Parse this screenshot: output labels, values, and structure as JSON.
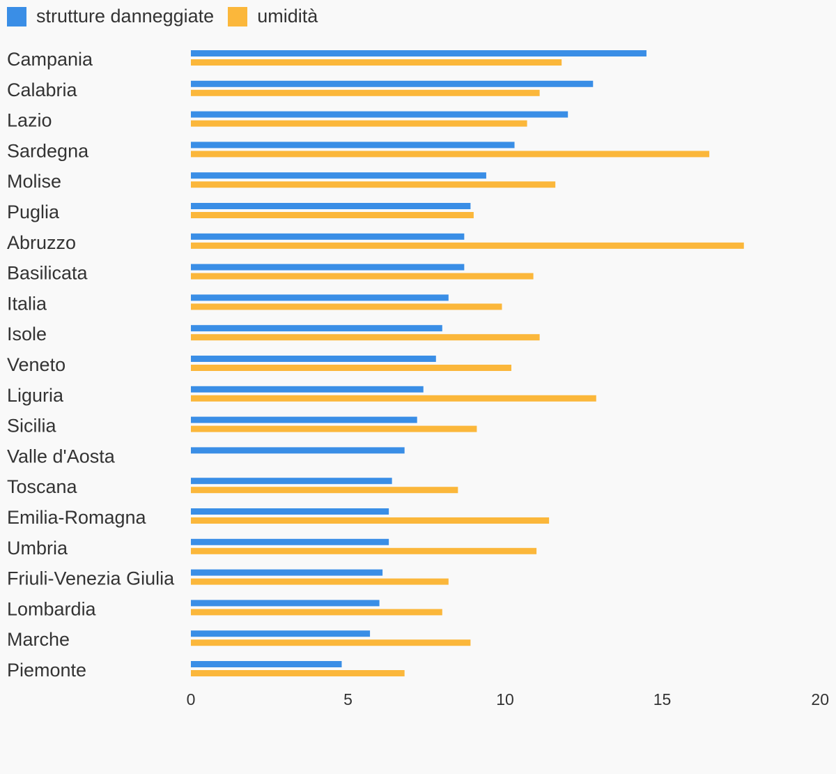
{
  "chart_data": {
    "type": "bar",
    "orientation": "horizontal",
    "categories": [
      "Campania",
      "Calabria",
      "Lazio",
      "Sardegna",
      "Molise",
      "Puglia",
      "Abruzzo",
      "Basilicata",
      "Italia",
      "Isole",
      "Veneto",
      "Liguria",
      "Sicilia",
      "Valle d'Aosta",
      "Toscana",
      "Emilia-Romagna",
      "Umbria",
      "Friuli-Venezia Giulia",
      "Lombardia",
      "Marche",
      "Piemonte"
    ],
    "series": [
      {
        "name": "strutture danneggiate",
        "color": "#3a8ee6",
        "values": [
          14.5,
          12.8,
          12.0,
          10.3,
          9.4,
          8.9,
          8.7,
          8.7,
          8.2,
          8.0,
          7.8,
          7.4,
          7.2,
          6.8,
          6.4,
          6.3,
          6.3,
          6.1,
          6.0,
          5.7,
          4.8
        ]
      },
      {
        "name": "umidità",
        "color": "#fbb73b",
        "values": [
          11.8,
          11.1,
          10.7,
          16.5,
          11.6,
          9.0,
          17.6,
          10.9,
          9.9,
          11.1,
          10.2,
          12.9,
          9.1,
          null,
          8.5,
          11.4,
          11.0,
          8.2,
          8.0,
          8.9,
          6.8
        ]
      }
    ],
    "xlim": [
      0,
      20
    ],
    "xticks": [
      "0",
      "5",
      "10",
      "15",
      "20"
    ],
    "legend_position": "top-left",
    "grid": false,
    "title": "",
    "xlabel": "",
    "ylabel": ""
  }
}
